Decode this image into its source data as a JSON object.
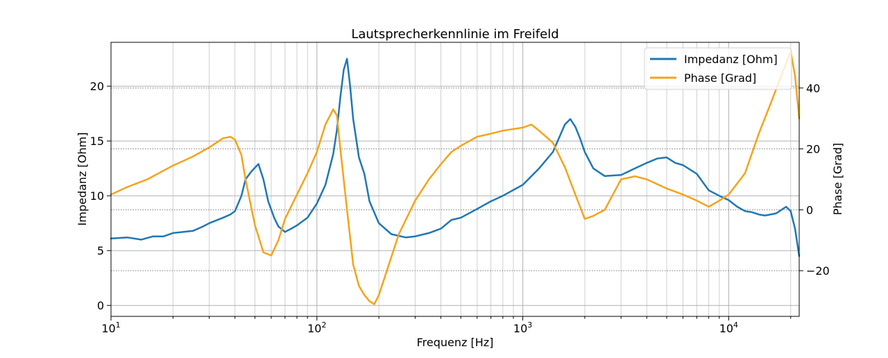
{
  "chart_data": {
    "type": "line",
    "title": "Lautsprecherkennlinie im Freifeld",
    "xlabel": "Frequenz [Hz]",
    "ylabel_left": "Impedanz [Ohm]",
    "ylabel_right": "Phase [Grad]",
    "x_scale": "log",
    "xlim": [
      10,
      22000
    ],
    "ylim_left": [
      -1,
      24
    ],
    "ylim_right": [
      -35,
      55
    ],
    "x_ticks": [
      {
        "value": 10,
        "base": "10",
        "exp": "1"
      },
      {
        "value": 100,
        "base": "10",
        "exp": "2"
      },
      {
        "value": 1000,
        "base": "10",
        "exp": "3"
      },
      {
        "value": 10000,
        "base": "10",
        "exp": "4"
      }
    ],
    "y_ticks_left": [
      0,
      5,
      10,
      15,
      20
    ],
    "y_ticks_right": [
      -20,
      0,
      20,
      40
    ],
    "grid": true,
    "legend_position": "top-right",
    "colors": {
      "impedance": "#1f77b4",
      "phase": "#f5a31a",
      "grid_major": "#b0b0b0",
      "grid_minor": "#cfcfcf"
    },
    "series": [
      {
        "name": "Impedanz [Ohm]",
        "axis": "left",
        "x": [
          10,
          12,
          14,
          16,
          18,
          20,
          25,
          28,
          30,
          35,
          38,
          40,
          43,
          45,
          48,
          52,
          55,
          58,
          62,
          65,
          70,
          75,
          80,
          90,
          100,
          110,
          120,
          125,
          130,
          135,
          140,
          145,
          150,
          160,
          170,
          180,
          200,
          230,
          270,
          300,
          350,
          400,
          450,
          500,
          600,
          700,
          800,
          1000,
          1200,
          1400,
          1600,
          1700,
          1800,
          1900,
          2000,
          2200,
          2500,
          3000,
          3500,
          4000,
          4500,
          5000,
          5500,
          6000,
          7000,
          8000,
          9000,
          10000,
          11000,
          12000,
          13000,
          14000,
          15000,
          16000,
          17000,
          18000,
          19000,
          20000,
          21000,
          22000
        ],
        "values": [
          6.1,
          6.2,
          6.0,
          6.3,
          6.3,
          6.6,
          6.8,
          7.2,
          7.5,
          8.0,
          8.3,
          8.6,
          10.0,
          11.5,
          12.2,
          12.9,
          11.5,
          9.5,
          8.0,
          7.2,
          6.7,
          7.0,
          7.3,
          8.0,
          9.3,
          11.0,
          13.8,
          16.0,
          19.0,
          21.5,
          22.5,
          20.0,
          17.0,
          13.5,
          12.0,
          9.5,
          7.5,
          6.5,
          6.2,
          6.3,
          6.6,
          7.0,
          7.8,
          8.0,
          8.8,
          9.5,
          10.0,
          11.0,
          12.5,
          14.0,
          16.5,
          17.0,
          16.3,
          15.2,
          14.0,
          12.5,
          11.8,
          11.9,
          12.5,
          13.0,
          13.4,
          13.5,
          13.0,
          12.8,
          12.0,
          10.5,
          10.0,
          9.6,
          9.0,
          8.6,
          8.5,
          8.3,
          8.2,
          8.3,
          8.4,
          8.7,
          9.0,
          8.6,
          7.0,
          4.5
        ]
      },
      {
        "name": "Phase [Grad]",
        "axis": "right",
        "x": [
          10,
          12,
          15,
          20,
          25,
          30,
          35,
          38,
          40,
          43,
          45,
          50,
          55,
          60,
          65,
          70,
          80,
          90,
          100,
          110,
          120,
          125,
          130,
          140,
          150,
          160,
          170,
          180,
          190,
          200,
          250,
          300,
          350,
          400,
          450,
          500,
          600,
          700,
          800,
          1000,
          1100,
          1200,
          1400,
          1600,
          1800,
          2000,
          2200,
          2500,
          3000,
          3500,
          4000,
          5000,
          6000,
          7000,
          8000,
          9000,
          10000,
          12000,
          14000,
          16000,
          18000,
          20000,
          21000,
          22000
        ],
        "values": [
          5,
          7.5,
          10,
          14.5,
          17.5,
          20.5,
          23.5,
          24,
          23,
          18,
          10,
          -5,
          -14,
          -15,
          -10,
          -3,
          5,
          12,
          19,
          28,
          33,
          31,
          20,
          0,
          -18,
          -25,
          -28,
          -30,
          -31,
          -28,
          -8,
          3,
          10,
          15,
          19,
          21,
          24,
          25,
          26,
          27,
          28,
          26,
          22,
          14,
          5,
          -3,
          -2,
          0,
          10,
          11,
          10,
          7,
          5,
          3,
          1,
          3,
          5,
          12,
          25,
          35,
          44,
          52,
          44,
          30
        ]
      }
    ]
  }
}
